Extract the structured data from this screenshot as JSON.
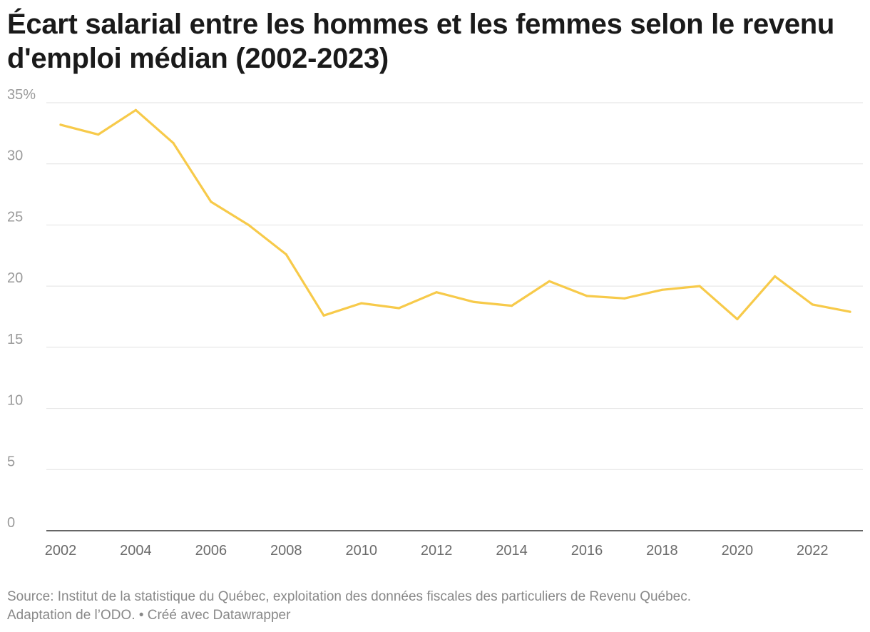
{
  "title": "Écart salarial entre les hommes et les femmes selon le revenu d'emploi médian (2002-2023)",
  "chart_data": {
    "type": "line",
    "x": [
      2002,
      2003,
      2004,
      2005,
      2006,
      2007,
      2008,
      2009,
      2010,
      2011,
      2012,
      2013,
      2014,
      2015,
      2016,
      2017,
      2018,
      2019,
      2020,
      2021,
      2022,
      2023
    ],
    "series": [
      {
        "values": [
          33.2,
          32.4,
          34.4,
          31.7,
          26.9,
          25.0,
          22.6,
          17.6,
          18.6,
          18.2,
          19.5,
          18.7,
          18.4,
          20.4,
          19.2,
          19.0,
          19.7,
          20.0,
          17.3,
          20.8,
          18.5,
          17.9
        ],
        "color": "#f7ca4a"
      }
    ],
    "xlim": [
      2002,
      2023
    ],
    "ylim": [
      0,
      35
    ],
    "y_ticks": [
      0,
      5,
      10,
      15,
      20,
      25,
      30,
      35
    ],
    "y_tick_labels": [
      "0",
      "5",
      "10",
      "15",
      "20",
      "25",
      "30",
      "35%"
    ],
    "x_ticks": [
      2002,
      2004,
      2006,
      2008,
      2010,
      2012,
      2014,
      2016,
      2018,
      2020,
      2022
    ],
    "x_tick_labels": [
      "2002",
      "2004",
      "2006",
      "2008",
      "2010",
      "2012",
      "2014",
      "2016",
      "2018",
      "2020",
      "2022"
    ],
    "grid": true,
    "legend": "none",
    "xlabel": "",
    "ylabel": ""
  },
  "footer": {
    "source": "Source: Institut de la statistique du Québec, exploitation des données fiscales des particuliers de Revenu Québec.",
    "credit": "Adaptation de l’ODO. • Créé avec Datawrapper"
  }
}
